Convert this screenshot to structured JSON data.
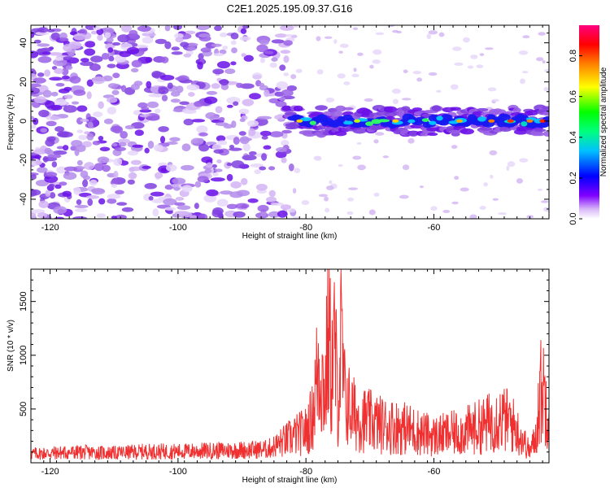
{
  "title": "C2E1.2025.195.09.37.G16",
  "chart_data": [
    {
      "type": "heatmap",
      "xlabel": "Height of straight line (km)",
      "ylabel": "Frequency (Hz)",
      "xlim": [
        -123,
        -42
      ],
      "ylim": [
        -50,
        49
      ],
      "xticks": [
        -120,
        -100,
        -80,
        -60
      ],
      "yticks": [
        -40,
        -20,
        0,
        20,
        40
      ],
      "colorbar": {
        "label": "Normalized spectral amplitude",
        "range": [
          0,
          0.95
        ],
        "ticks": [
          0.0,
          0.2,
          0.4,
          0.6,
          0.8
        ],
        "colors": [
          "#ffffff",
          "#c8a0f0",
          "#8000ff",
          "#0000ff",
          "#00ffff",
          "#00ff00",
          "#ffff00",
          "#ff8000",
          "#ff0000",
          "#ff00ff"
        ]
      },
      "features": {
        "noise_region_x": [
          -123,
          -83
        ],
        "signal_band": {
          "x_start": -83,
          "x_end": -42,
          "center_frequency_hz": 0,
          "peak_amplitude_x": -48
        }
      }
    },
    {
      "type": "line",
      "xlabel": "Height of straight line (km)",
      "ylabel": "SNR (10 * v/v)",
      "xlim": [
        -123,
        -42
      ],
      "ylim": [
        0,
        1800
      ],
      "xticks": [
        -120,
        -100,
        -80,
        -60
      ],
      "yticks": [
        500,
        1000,
        1500
      ],
      "series": [
        {
          "color": "#f03030",
          "x": [
            -123,
            -120,
            -115,
            -110,
            -105,
            -100,
            -95,
            -90,
            -86,
            -84,
            -82,
            -80,
            -79,
            -78,
            -77,
            -76.5,
            -76,
            -75.5,
            -75,
            -74.5,
            -74,
            -73,
            -72,
            -70,
            -68,
            -66,
            -64,
            -62,
            -60,
            -58,
            -56,
            -54,
            -52,
            -50,
            -48,
            -46,
            -45,
            -44,
            -43.5,
            -43,
            -42.5,
            -42
          ],
          "values": [
            120,
            130,
            140,
            130,
            150,
            150,
            160,
            170,
            180,
            260,
            350,
            420,
            600,
            1350,
            900,
            1780,
            1200,
            1550,
            800,
            1600,
            900,
            700,
            600,
            550,
            500,
            480,
            450,
            400,
            350,
            380,
            400,
            450,
            500,
            600,
            550,
            300,
            150,
            350,
            900,
            1000,
            850,
            750
          ]
        }
      ]
    }
  ]
}
